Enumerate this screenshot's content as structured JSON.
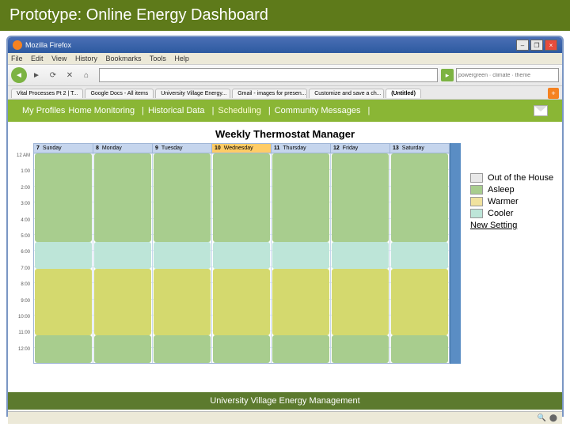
{
  "slide": {
    "title": "Prototype: Online Energy Dashboard"
  },
  "browser": {
    "window_title": "Mozilla Firefox",
    "menu": [
      "File",
      "Edit",
      "View",
      "History",
      "Bookmarks",
      "Tools",
      "Help"
    ],
    "url": "",
    "search_placeholder": "powergreen · climate · theme",
    "tabs": [
      {
        "label": "Vital Processes Pt 2 | T..."
      },
      {
        "label": "Google Docs - All items"
      },
      {
        "label": "University Village Energy..."
      },
      {
        "label": "Gmail - images for presen..."
      },
      {
        "label": "Customize and save a ch..."
      },
      {
        "label": "(Untitled)",
        "active": true
      }
    ]
  },
  "nav": {
    "items": [
      "My Profiles",
      "Home Monitoring",
      "Historical Data",
      "Scheduling",
      "Community Messages"
    ],
    "active_index": 3
  },
  "chart": {
    "title": "Weekly Thermostat Manager",
    "days": [
      {
        "num": "7",
        "name": "Sunday"
      },
      {
        "num": "8",
        "name": "Monday"
      },
      {
        "num": "9",
        "name": "Tuesday"
      },
      {
        "num": "10",
        "name": "Wednesday",
        "today": true
      },
      {
        "num": "11",
        "name": "Thursday"
      },
      {
        "num": "12",
        "name": "Friday"
      },
      {
        "num": "13",
        "name": "Saturday"
      }
    ],
    "time_labels": [
      "12 AM",
      "1:00",
      "2:00",
      "3:00",
      "4:00",
      "5:00",
      "6:00",
      "7:00",
      "8:00",
      "9:00",
      "10:00",
      "11:00",
      "12:00"
    ],
    "row_height": 20.4,
    "blocks": {
      "default": [
        {
          "type": "asleep",
          "start": 0,
          "end": 112
        },
        {
          "type": "cooler",
          "start": 112,
          "end": 146
        },
        {
          "type": "warm",
          "start": 146,
          "end": 230
        },
        {
          "type": "asleep",
          "start": 230,
          "end": 265
        }
      ]
    },
    "colors": {
      "out": "#e8e8e8",
      "asleep": "#a8cd8e",
      "warm": "#d4d96e",
      "cooler": "#bde5d8",
      "header_bg": "#c5d5ed",
      "today_bg": "#ffcc66",
      "nav_bg": "#8ab635",
      "footer_bg": "#5c7a2e"
    }
  },
  "legend": {
    "items": [
      {
        "label": "Out of the House",
        "color": "#e8e8e8"
      },
      {
        "label": "Asleep",
        "color": "#a8cd8e"
      },
      {
        "label": "Warmer",
        "color": "#f0e29e"
      },
      {
        "label": "Cooler",
        "color": "#bde5d8"
      },
      {
        "label": "New Setting",
        "link": true
      }
    ]
  },
  "footer": {
    "text": "University Village Energy Management"
  }
}
